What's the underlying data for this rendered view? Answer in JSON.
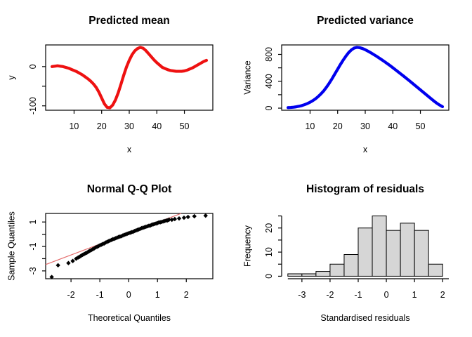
{
  "page": {
    "background": "#FFFFFF"
  },
  "colors": {
    "mean_line": "#EE1111",
    "variance_line": "#0000EE",
    "qq_point": "#000000",
    "qq_refline": "#E46C6C",
    "hist_fill": "#D6D6D6",
    "hist_border": "#000000",
    "axis": "#000000"
  },
  "chart_data": [
    {
      "id": "predicted-mean",
      "type": "line",
      "title": "Predicted mean",
      "xlabel": "x",
      "ylabel": "y",
      "xlim": [
        -0.3,
        60.3
      ],
      "ylim": [
        -111.2,
        55.2
      ],
      "xticks": [
        10,
        20,
        30,
        40,
        50
      ],
      "yticks": [
        {
          "v": 0,
          "label": "0"
        },
        {
          "v": -50,
          "label": ""
        },
        {
          "v": -100,
          "label": "-100"
        }
      ],
      "frame": true,
      "line_color": "#EE1111",
      "line_width": 4.2,
      "x": [
        2,
        3,
        4,
        5,
        6,
        7,
        8,
        9,
        10,
        11,
        12,
        13,
        14,
        15,
        16,
        17,
        18,
        19,
        20,
        21,
        22,
        23,
        24,
        25,
        26,
        27,
        28,
        29,
        30,
        31,
        32,
        33,
        34,
        35,
        36,
        37,
        38,
        39,
        40,
        41,
        42,
        43,
        44,
        45,
        46,
        47,
        48,
        49,
        50,
        51,
        52,
        53,
        54,
        55,
        56,
        57,
        58
      ],
      "y": [
        0,
        1,
        2,
        1,
        0,
        -2,
        -4,
        -7,
        -10,
        -13,
        -17,
        -21,
        -26,
        -31,
        -37,
        -44,
        -53,
        -65,
        -80,
        -95,
        -104,
        -105,
        -98,
        -85,
        -67,
        -45,
        -22,
        -1,
        16,
        30,
        40,
        46,
        49,
        47,
        41,
        33,
        25,
        17,
        10,
        4,
        -2,
        -5,
        -8,
        -10,
        -11,
        -12,
        -12,
        -12,
        -11,
        -9,
        -6,
        -3,
        1,
        5,
        9,
        13,
        16
      ]
    },
    {
      "id": "predicted-variance",
      "type": "line",
      "title": "Predicted variance",
      "xlabel": "x",
      "ylabel": "Variance",
      "xlim": [
        -0.3,
        60.3
      ],
      "ylim": [
        -31,
        941
      ],
      "xticks": [
        10,
        20,
        30,
        40,
        50
      ],
      "yticks": [
        {
          "v": 0,
          "label": "0"
        },
        {
          "v": 200,
          "label": ""
        },
        {
          "v": 400,
          "label": "400"
        },
        {
          "v": 600,
          "label": ""
        },
        {
          "v": 800,
          "label": "800"
        }
      ],
      "frame": true,
      "line_color": "#0000EE",
      "line_width": 4.2,
      "x": [
        2,
        3,
        4,
        5,
        6,
        7,
        8,
        9,
        10,
        11,
        12,
        13,
        14,
        15,
        16,
        17,
        18,
        19,
        20,
        21,
        22,
        23,
        24,
        25,
        26,
        27,
        28,
        29,
        30,
        31,
        32,
        33,
        34,
        35,
        36,
        37,
        38,
        39,
        40,
        41,
        42,
        43,
        44,
        45,
        46,
        47,
        48,
        49,
        50,
        51,
        52,
        53,
        54,
        55,
        56,
        57,
        58
      ],
      "y": [
        8,
        10,
        14,
        20,
        28,
        38,
        52,
        68,
        88,
        112,
        140,
        175,
        215,
        260,
        315,
        375,
        440,
        510,
        580,
        650,
        715,
        775,
        828,
        868,
        895,
        905,
        900,
        888,
        870,
        848,
        825,
        800,
        775,
        748,
        720,
        692,
        663,
        633,
        602,
        570,
        538,
        506,
        474,
        441,
        408,
        374,
        340,
        306,
        272,
        238,
        204,
        170,
        136,
        103,
        72,
        45,
        22
      ]
    },
    {
      "id": "normal-qq",
      "type": "scatter",
      "title": "Normal Q-Q Plot",
      "xlabel": "Theoretical Quantiles",
      "ylabel": "Sample Quantiles",
      "xlim": [
        -2.88,
        2.92
      ],
      "ylim": [
        -3.64,
        1.7
      ],
      "xticks": [
        -2,
        -1,
        0,
        1,
        2
      ],
      "yticks": [
        {
          "v": 1,
          "label": "1"
        },
        {
          "v": 0,
          "label": ""
        },
        {
          "v": -1,
          "label": "-1"
        },
        {
          "v": -2,
          "label": ""
        },
        {
          "v": -3,
          "label": "-3"
        }
      ],
      "frame": true,
      "marker_color": "#000000",
      "refline": {
        "x1": -2.88,
        "y1": -2.48,
        "x2": 1.82,
        "y2": 1.7,
        "color": "#E46C6C"
      },
      "points": [
        [
          -2.67,
          -3.5
        ],
        [
          -2.45,
          -2.54
        ],
        [
          -2.09,
          -2.36
        ],
        [
          -1.94,
          -2.19
        ],
        [
          -1.82,
          -2.0
        ],
        [
          -1.75,
          -1.9
        ],
        [
          -1.7,
          -1.84
        ],
        [
          -1.65,
          -1.76
        ],
        [
          -1.6,
          -1.69
        ],
        [
          -1.55,
          -1.63
        ],
        [
          -1.5,
          -1.56
        ],
        [
          -1.45,
          -1.51
        ],
        [
          -1.4,
          -1.43
        ],
        [
          -1.35,
          -1.36
        ],
        [
          -1.3,
          -1.3
        ],
        [
          -1.25,
          -1.23
        ],
        [
          -1.2,
          -1.17
        ],
        [
          -1.15,
          -1.08
        ],
        [
          -1.1,
          -1.04
        ],
        [
          -1.05,
          -0.97
        ],
        [
          -1.0,
          -0.91
        ],
        [
          -0.95,
          -0.86
        ],
        [
          -0.9,
          -0.8
        ],
        [
          -0.85,
          -0.76
        ],
        [
          -0.8,
          -0.68
        ],
        [
          -0.75,
          -0.63
        ],
        [
          -0.7,
          -0.57
        ],
        [
          -0.65,
          -0.52
        ],
        [
          -0.6,
          -0.47
        ],
        [
          -0.55,
          -0.41
        ],
        [
          -0.5,
          -0.38
        ],
        [
          -0.45,
          -0.33
        ],
        [
          -0.4,
          -0.28
        ],
        [
          -0.35,
          -0.23
        ],
        [
          -0.3,
          -0.19
        ],
        [
          -0.25,
          -0.16
        ],
        [
          -0.2,
          -0.1
        ],
        [
          -0.15,
          -0.05
        ],
        [
          -0.1,
          -0.01
        ],
        [
          -0.05,
          0.04
        ],
        [
          0.0,
          0.08
        ],
        [
          0.05,
          0.12
        ],
        [
          0.1,
          0.17
        ],
        [
          0.15,
          0.19
        ],
        [
          0.2,
          0.26
        ],
        [
          0.25,
          0.3
        ],
        [
          0.3,
          0.35
        ],
        [
          0.35,
          0.39
        ],
        [
          0.4,
          0.44
        ],
        [
          0.45,
          0.5
        ],
        [
          0.5,
          0.53
        ],
        [
          0.55,
          0.57
        ],
        [
          0.6,
          0.61
        ],
        [
          0.65,
          0.65
        ],
        [
          0.7,
          0.69
        ],
        [
          0.75,
          0.71
        ],
        [
          0.8,
          0.77
        ],
        [
          0.85,
          0.81
        ],
        [
          0.9,
          0.84
        ],
        [
          0.95,
          0.88
        ],
        [
          1.0,
          0.91
        ],
        [
          1.05,
          0.97
        ],
        [
          1.1,
          0.98
        ],
        [
          1.15,
          1.01
        ],
        [
          1.2,
          1.05
        ],
        [
          1.25,
          1.08
        ],
        [
          1.3,
          1.12
        ],
        [
          1.35,
          1.13
        ],
        [
          1.4,
          1.19
        ],
        [
          1.5,
          1.18
        ],
        [
          1.6,
          1.24
        ],
        [
          1.75,
          1.29
        ],
        [
          1.92,
          1.35
        ],
        [
          2.06,
          1.41
        ],
        [
          2.28,
          1.47
        ],
        [
          2.67,
          1.52
        ]
      ]
    },
    {
      "id": "residual-hist",
      "type": "bar",
      "title": "Histogram of residuals",
      "xlabel": "Standardised residuals",
      "ylabel": "Frequency",
      "xlim": [
        -3.72,
        2.22
      ],
      "ylim": [
        -1.04,
        26.04
      ],
      "xticks": [
        -3,
        -2,
        -1,
        0,
        1,
        2
      ],
      "yticks": [
        {
          "v": 0,
          "label": "0"
        },
        {
          "v": 5,
          "label": ""
        },
        {
          "v": 10,
          "label": "10"
        },
        {
          "v": 15,
          "label": ""
        },
        {
          "v": 20,
          "label": "20"
        },
        {
          "v": 25,
          "label": ""
        }
      ],
      "frame": false,
      "bar_fill": "#D6D6D6",
      "bar_stroke": "#000000",
      "bins": {
        "start": -3.5,
        "width": 0.5,
        "counts": [
          1,
          1,
          2,
          5,
          9,
          20,
          25,
          19,
          22,
          19,
          5
        ]
      },
      "xaxis_line": [
        -3.5,
        2.22
      ],
      "yaxis_line": [
        0,
        25
      ]
    }
  ]
}
